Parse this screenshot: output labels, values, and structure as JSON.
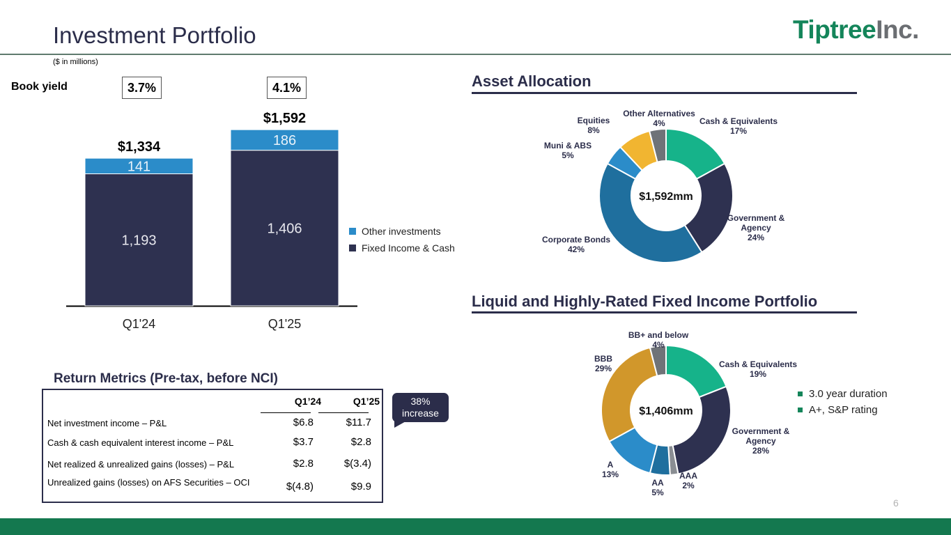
{
  "header": {
    "title": "Investment Portfolio",
    "units": "($ in millions)",
    "logo_part1": "Tiptree",
    "logo_part2": "Inc.",
    "page_number": "6"
  },
  "book_yield": {
    "label": "Book yield",
    "values": [
      "3.7%",
      "4.1%"
    ]
  },
  "colors": {
    "navy": "#2b2d4a",
    "bar_other": "#2b8cc9",
    "brand_green": "#14855a",
    "footer_green": "#14784f"
  },
  "chart_data": [
    {
      "type": "bar",
      "stacked": true,
      "categories": [
        "Q1'24",
        "Q1'25"
      ],
      "totals": [
        "$1,334",
        "$1,592"
      ],
      "series": [
        {
          "name": "Fixed Income & Cash",
          "values": [
            1193,
            1406
          ],
          "labels": [
            "1,193",
            "1,406"
          ],
          "color": "#2e3150"
        },
        {
          "name": "Other investments",
          "values": [
            141,
            186
          ],
          "labels": [
            "141",
            "186"
          ],
          "color": "#2b8cc9"
        }
      ],
      "legend": [
        "Other investments",
        "Fixed Income & Cash"
      ],
      "legend_colors": [
        "#2b8cc9",
        "#2e3150"
      ],
      "ylim": [
        0,
        1700
      ]
    },
    {
      "type": "pie",
      "donut": true,
      "title": "Asset Allocation",
      "center_label": "$1,592mm",
      "categories": [
        "Cash & Equivalents",
        "Government & Agency",
        "Corporate Bonds",
        "Muni & ABS",
        "Equities",
        "Other Alternatives"
      ],
      "label_lines": [
        [
          "Cash & Equivalents",
          "17%"
        ],
        [
          "Government &",
          "Agency",
          "24%"
        ],
        [
          "Corporate Bonds",
          "42%"
        ],
        [
          "Muni & ABS",
          "5%"
        ],
        [
          "Equities",
          "8%"
        ],
        [
          "Other Alternatives",
          "4%"
        ]
      ],
      "values": [
        17,
        24,
        42,
        5,
        8,
        4
      ],
      "colors": [
        "#16b38a",
        "#2e3150",
        "#1f6f9e",
        "#2b8cc9",
        "#f1b531",
        "#6f7378"
      ]
    },
    {
      "type": "pie",
      "donut": true,
      "title": "Liquid and Highly-Rated Fixed Income Portfolio",
      "center_label": "$1,406mm",
      "categories": [
        "Cash & Equivalents",
        "Government & Agency",
        "AAA",
        "AA",
        "A",
        "BBB",
        "BB+ and below"
      ],
      "label_lines": [
        [
          "Cash & Equivalents",
          "19%"
        ],
        [
          "Government &",
          "Agency",
          "28%"
        ],
        [
          "AAA",
          "2%"
        ],
        [
          "AA",
          "5%"
        ],
        [
          "A",
          "13%"
        ],
        [
          "BBB",
          "29%"
        ],
        [
          "BB+ and below",
          "4%"
        ]
      ],
      "values": [
        19,
        28,
        2,
        5,
        13,
        29,
        4
      ],
      "colors": [
        "#16b38a",
        "#2e3150",
        "#8a8e93",
        "#1f6f9e",
        "#2b8cc9",
        "#d1972b",
        "#6f7378"
      ]
    }
  ],
  "fixed_income_bullets": [
    "3.0 year duration",
    "A+, S&P rating"
  ],
  "return_metrics": {
    "title": "Return Metrics (Pre-tax, before NCI)",
    "columns": [
      "Q1’24",
      "Q1’25"
    ],
    "rows": [
      {
        "label": "Net investment income – P&L",
        "q1_24": "$6.8",
        "q1_25": "$11.7"
      },
      {
        "label": "Cash & cash equivalent interest income – P&L",
        "q1_24": "$3.7",
        "q1_25": "$2.8"
      },
      {
        "label": "Net realized & unrealized gains (losses) – P&L",
        "q1_24": "$2.8",
        "q1_25": "$(3.4)"
      },
      {
        "label": "Unrealized gains (losses) on AFS Securities – OCI",
        "q1_24": "$(4.8)",
        "q1_25": "$9.9"
      }
    ],
    "callout_line1": "38%",
    "callout_line2": "increase"
  }
}
